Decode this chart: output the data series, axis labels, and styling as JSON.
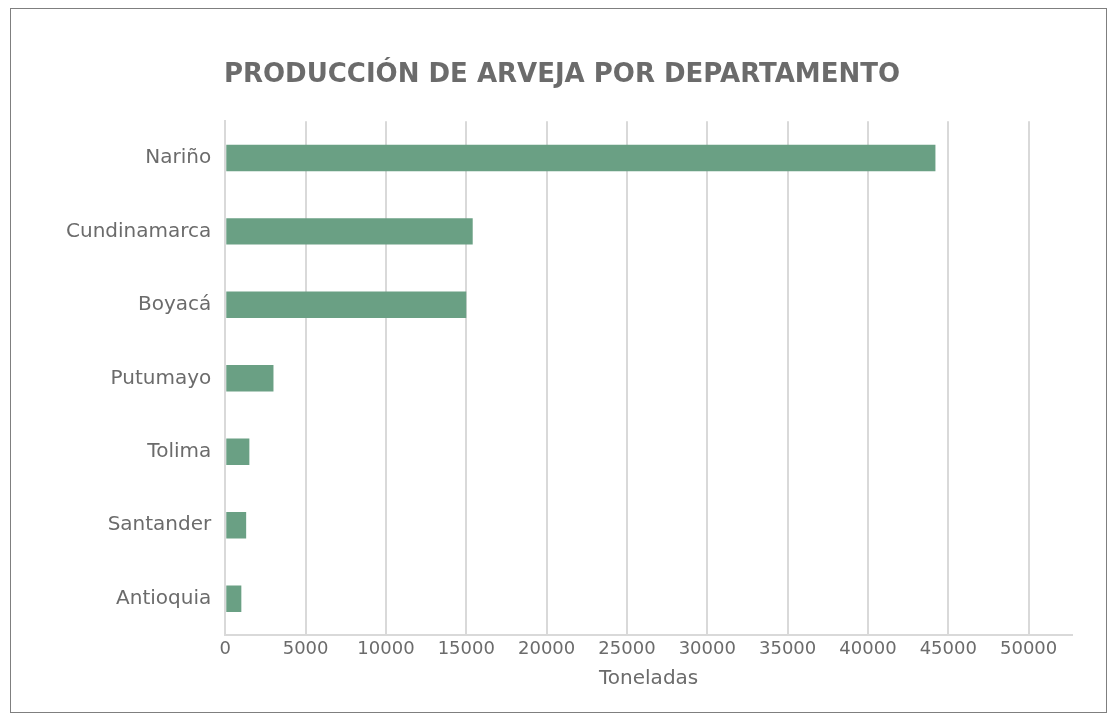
{
  "chart_data": {
    "type": "bar",
    "orientation": "horizontal",
    "title": "PRODUCCIÓN DE ARVEJA POR DEPARTAMENTO",
    "xlabel": "Toneladas",
    "categories": [
      "Nariño",
      "Cundinamarca",
      "Boyacá",
      "Putumayo",
      "Tolima",
      "Santander",
      "Antioquia"
    ],
    "values": [
      44200,
      15400,
      15000,
      3000,
      1500,
      1300,
      1000
    ],
    "color": "#6aa084",
    "xlim": [
      0,
      52700
    ],
    "xticks": [
      0,
      5000,
      10000,
      15000,
      20000,
      25000,
      30000,
      35000,
      40000,
      45000,
      50000
    ],
    "grid": "x",
    "legend": false
  }
}
